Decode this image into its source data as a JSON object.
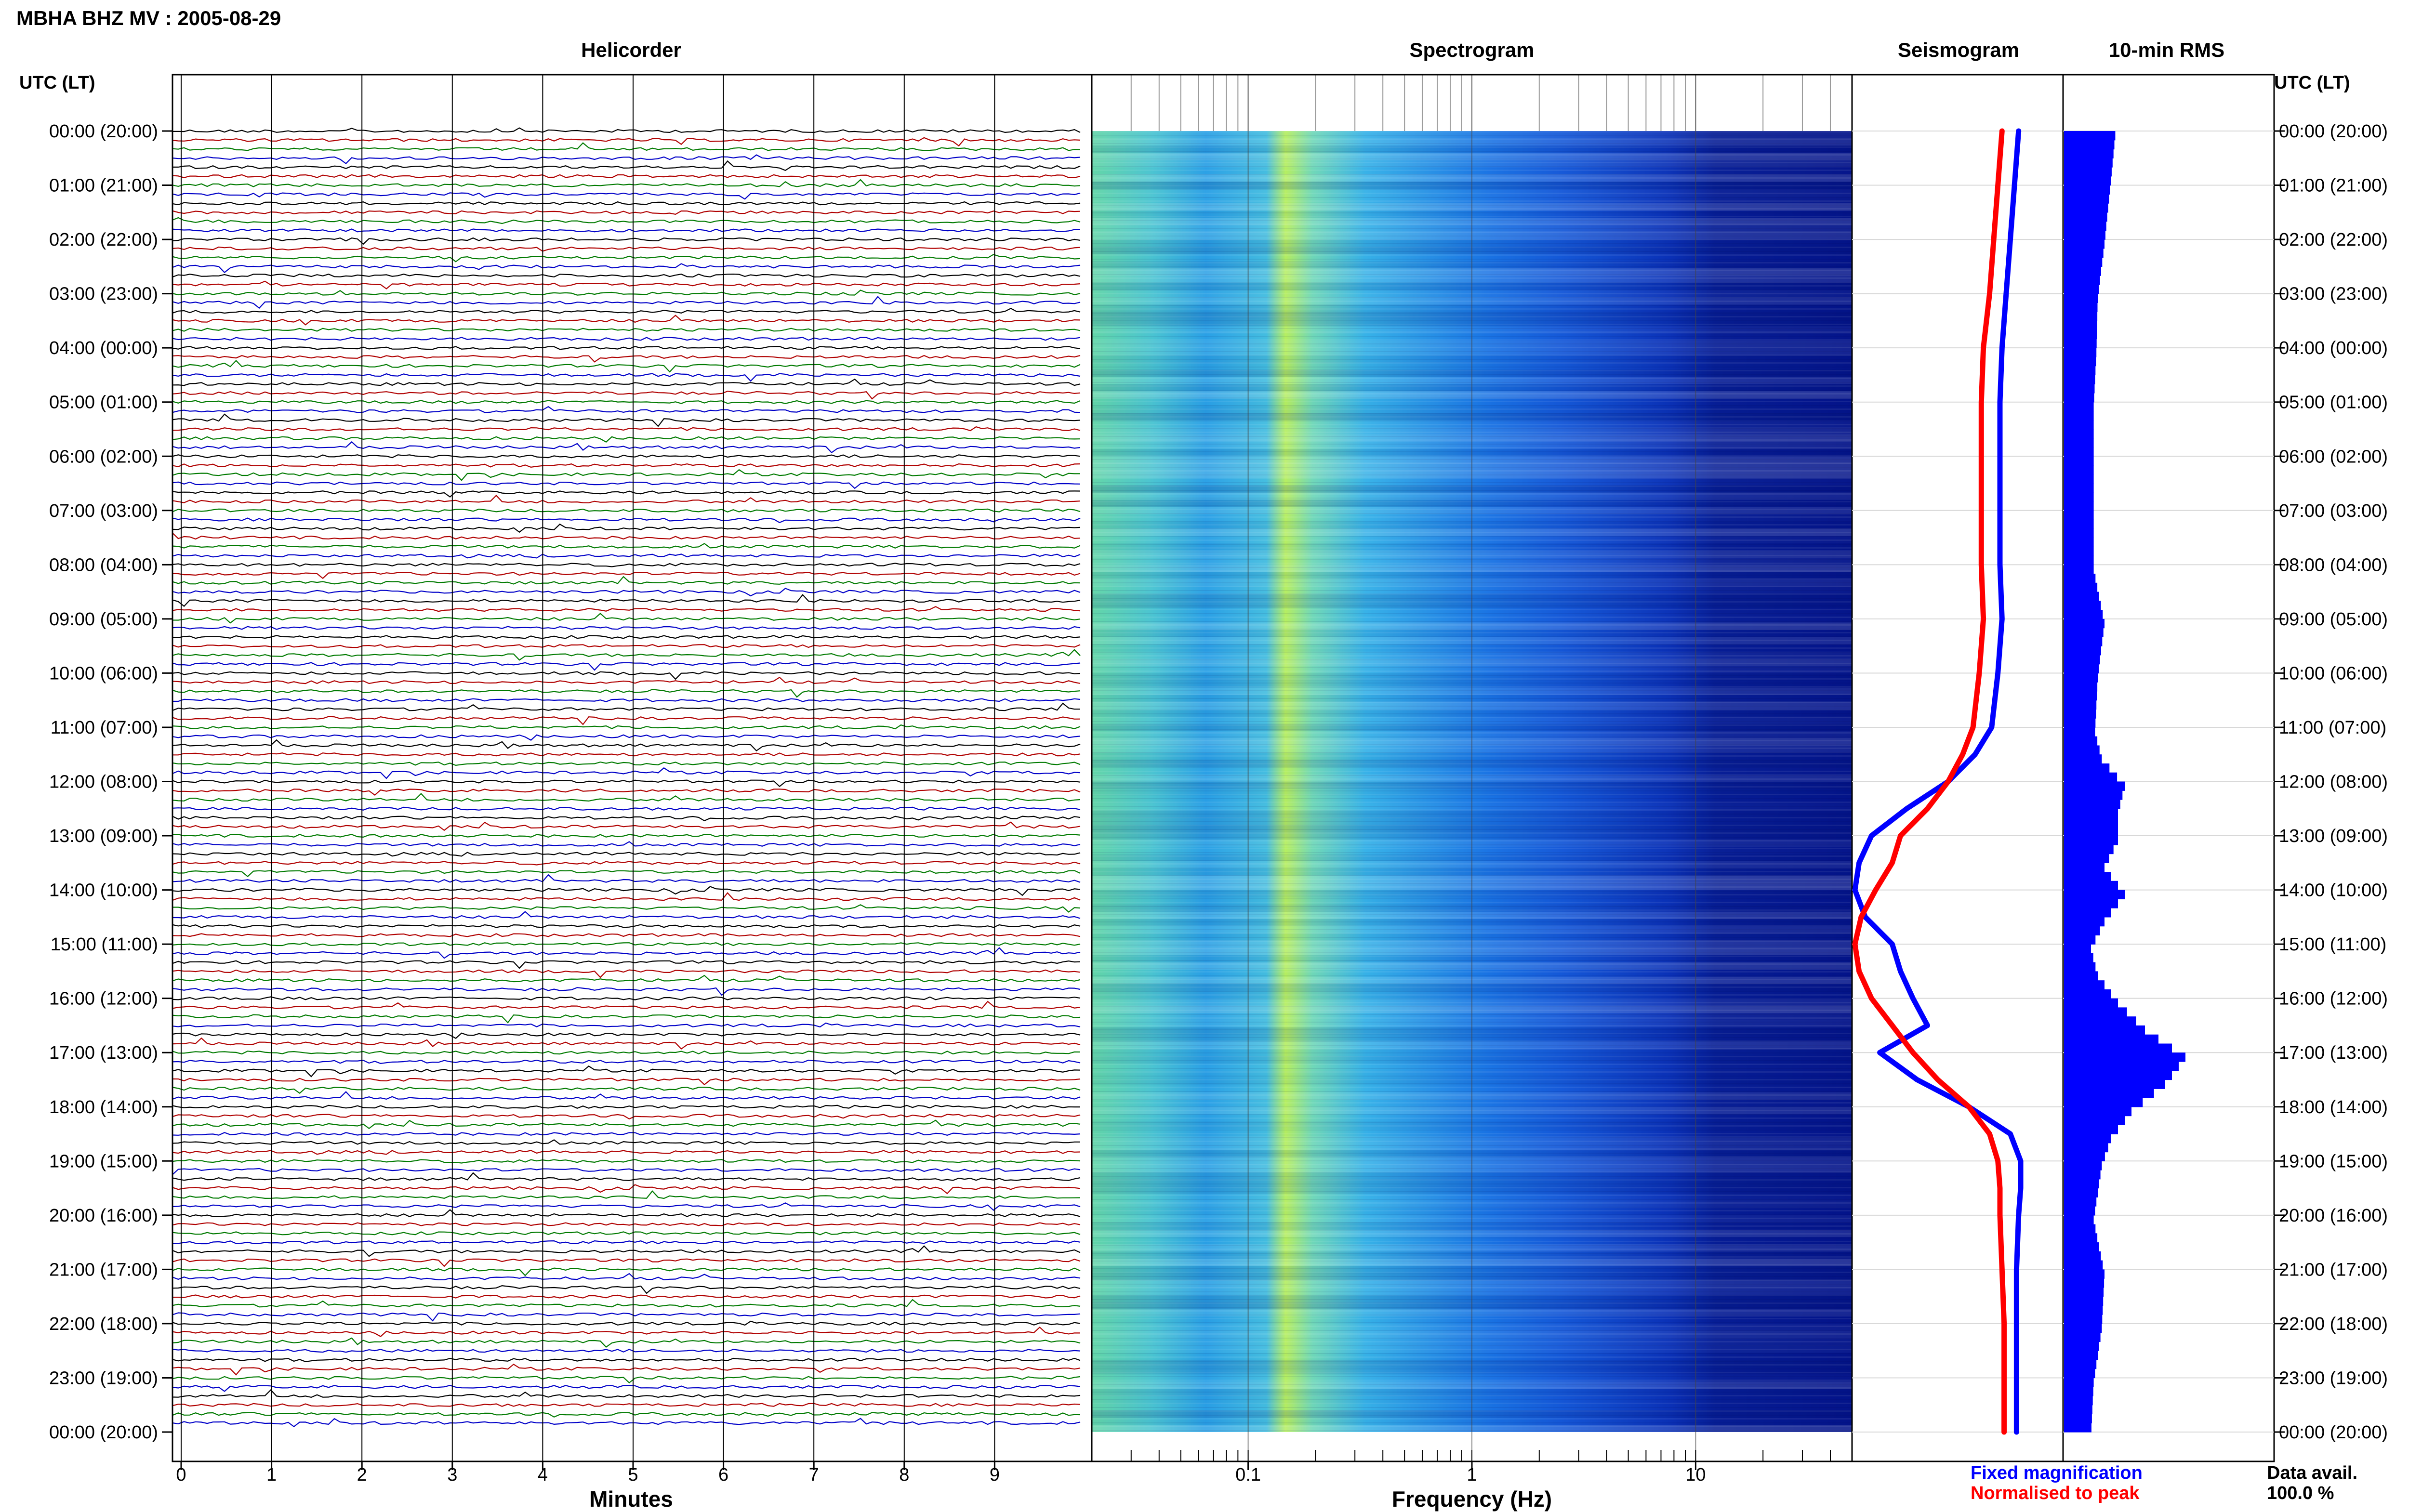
{
  "chart_data": {
    "type": "heatmap",
    "title": "MBHA BHZ MV : 2005-08-29",
    "panels": {
      "helicorder": {
        "title": "Helicorder",
        "xlabel": "Minutes",
        "x_ticks": [
          "0",
          "1",
          "2",
          "3",
          "4",
          "5",
          "6",
          "7",
          "8",
          "9"
        ],
        "line_colors": [
          "#000000",
          "#b00000",
          "#007a00",
          "#0000c8"
        ]
      },
      "spectrogram": {
        "title": "Spectrogram",
        "xlabel": "Frequency (Hz)",
        "x_scale": "log",
        "x_ticks": [
          "0.1",
          "1",
          "10"
        ],
        "xlim_hz": [
          0.02,
          50
        ]
      },
      "seismogram": {
        "title": "Seismogram",
        "series": [
          {
            "name": "Fixed magnification",
            "color": "#0000ff",
            "hours": [
              0,
              1,
              2,
              3,
              4,
              5,
              6,
              7,
              8,
              9,
              10,
              11,
              11.5,
              12,
              12.5,
              13,
              13.5,
              14,
              14.5,
              15,
              15.5,
              16,
              16.5,
              17,
              17.5,
              18,
              18.5,
              19,
              19.5,
              20,
              21,
              22,
              23,
              24
            ],
            "values": [
              0.79,
              0.77,
              0.75,
              0.73,
              0.71,
              0.7,
              0.7,
              0.7,
              0.7,
              0.71,
              0.69,
              0.66,
              0.58,
              0.45,
              0.25,
              0.08,
              0.02,
              0.0,
              0.05,
              0.18,
              0.22,
              0.28,
              0.35,
              0.12,
              0.3,
              0.55,
              0.75,
              0.8,
              0.8,
              0.79,
              0.78,
              0.78,
              0.78,
              0.78
            ]
          },
          {
            "name": "Normalised to peak",
            "color": "#ff0000",
            "hours": [
              0,
              1,
              2,
              3,
              4,
              5,
              6,
              7,
              8,
              9,
              10,
              11,
              11.5,
              12,
              12.5,
              13,
              13.5,
              14,
              14.5,
              15,
              15.5,
              16,
              16.5,
              17,
              17.5,
              18,
              18.5,
              19,
              19.5,
              20,
              21,
              22,
              23,
              24
            ],
            "values": [
              0.71,
              0.69,
              0.67,
              0.65,
              0.62,
              0.61,
              0.61,
              0.61,
              0.61,
              0.62,
              0.6,
              0.57,
              0.52,
              0.45,
              0.35,
              0.22,
              0.18,
              0.1,
              0.03,
              0.0,
              0.02,
              0.08,
              0.18,
              0.28,
              0.4,
              0.55,
              0.65,
              0.69,
              0.7,
              0.7,
              0.71,
              0.72,
              0.72,
              0.72
            ]
          }
        ]
      },
      "rms": {
        "title": "10-min RMS",
        "color": "#0000ff",
        "hours": [
          0,
          1,
          2,
          3,
          4,
          5,
          6,
          7,
          8,
          9,
          10,
          11,
          11.5,
          12,
          12.5,
          13,
          13.5,
          14,
          14.5,
          15,
          15.5,
          16,
          16.5,
          17,
          17.5,
          18,
          18.5,
          19,
          20,
          21,
          22,
          23,
          24
        ],
        "values": [
          0.38,
          0.34,
          0.3,
          0.25,
          0.24,
          0.22,
          0.22,
          0.22,
          0.22,
          0.3,
          0.25,
          0.23,
          0.28,
          0.45,
          0.4,
          0.4,
          0.3,
          0.45,
          0.3,
          0.2,
          0.25,
          0.4,
          0.6,
          0.9,
          0.75,
          0.5,
          0.35,
          0.28,
          0.22,
          0.3,
          0.28,
          0.22,
          0.2
        ]
      }
    },
    "y_title": "UTC (LT)",
    "y_ticks": [
      "00:00 (20:00)",
      "01:00 (21:00)",
      "02:00 (22:00)",
      "03:00 (23:00)",
      "04:00 (00:00)",
      "05:00 (01:00)",
      "06:00 (02:00)",
      "07:00 (03:00)",
      "08:00 (04:00)",
      "09:00 (05:00)",
      "10:00 (06:00)",
      "11:00 (07:00)",
      "12:00 (08:00)",
      "13:00 (09:00)",
      "14:00 (10:00)",
      "15:00 (11:00)",
      "16:00 (12:00)",
      "17:00 (13:00)",
      "18:00 (14:00)",
      "19:00 (15:00)",
      "20:00 (16:00)",
      "21:00 (17:00)",
      "22:00 (18:00)",
      "23:00 (19:00)",
      "00:00 (20:00)"
    ],
    "legend": [
      {
        "label": "Fixed magnification",
        "color": "#0000ff"
      },
      {
        "label": "Normalised to peak",
        "color": "#ff0000"
      }
    ],
    "data_availability": {
      "label": "Data avail.",
      "value": "100.0 %"
    }
  }
}
